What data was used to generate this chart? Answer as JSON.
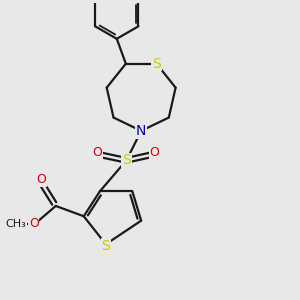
{
  "bg_color": "#e8e8e8",
  "bond_color": "#1a1a1a",
  "S_color": "#cccc00",
  "N_color": "#0000cc",
  "O_color": "#dd0000",
  "bond_width": 1.6,
  "fig_width": 3.0,
  "fig_height": 3.0,
  "dpi": 100,
  "xlim": [
    0,
    10
  ],
  "ylim": [
    0,
    10
  ]
}
